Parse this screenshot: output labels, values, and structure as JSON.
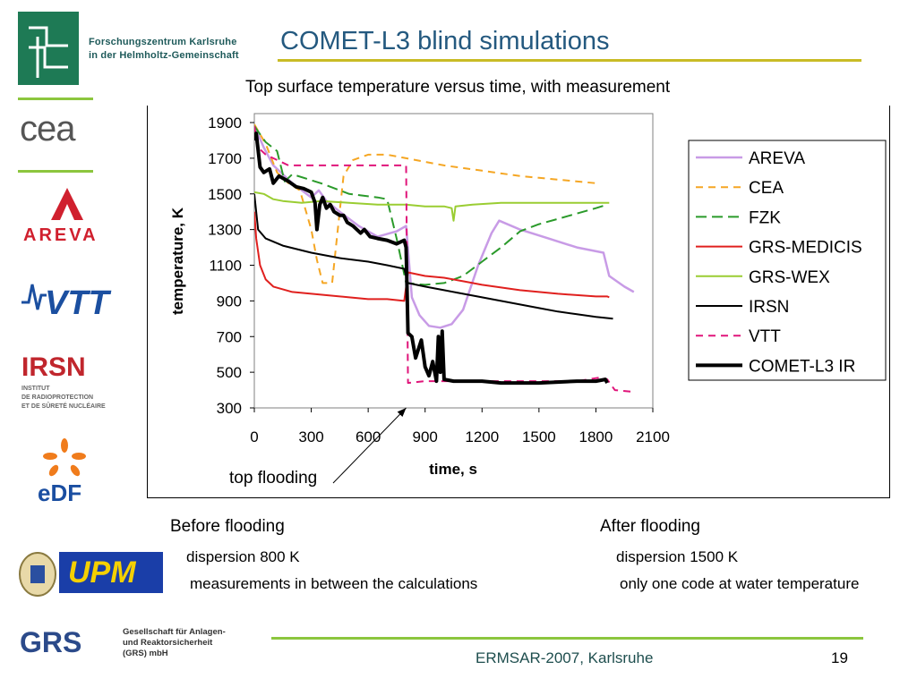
{
  "header": {
    "org_line1": "Forschungszentrum Karlsruhe",
    "org_line2": "in der Helmholtz-Gemeinschaft",
    "title": "COMET-L3 blind simulations"
  },
  "logos": {
    "cea": "cea",
    "areva": "AREVA",
    "vtt": "VTT",
    "irsn": "IRSN",
    "irsn_sub": [
      "INSTITUT",
      "DE RADIOPROTECTION",
      "ET DE SÛRETÉ NUCLÉAIRE"
    ],
    "edf": "eDF",
    "upm": "UPM",
    "grs": "GRS",
    "grs_text": [
      "Gesellschaft für Anlagen-",
      "und Reaktorsicherheit",
      "(GRS) mbH"
    ]
  },
  "colors": {
    "title": "#24597f",
    "rule_yellow": "#c9bb25",
    "rule_green": "#8cc63e",
    "fzk_green": "#1e7a55"
  },
  "chart_data": {
    "type": "line",
    "title": "Top surface temperature versus time, with measurement",
    "xlabel": "time, s",
    "ylabel": "temperature, K",
    "xlim": [
      0,
      2100
    ],
    "ylim": [
      300,
      1900
    ],
    "xticks": [
      0,
      300,
      600,
      900,
      1200,
      1500,
      1800,
      2100
    ],
    "yticks": [
      300,
      500,
      700,
      900,
      1100,
      1300,
      1500,
      1700,
      1900
    ],
    "grid": false,
    "legend_position": "right",
    "annotation": {
      "text": "top flooding",
      "x": 800,
      "y": 300
    },
    "series": [
      {
        "name": "AREVA",
        "color": "#c89be6",
        "dash": "solid",
        "width": 2.5,
        "points": [
          [
            0,
            1880
          ],
          [
            50,
            1760
          ],
          [
            100,
            1660
          ],
          [
            200,
            1560
          ],
          [
            300,
            1480
          ],
          [
            340,
            1520
          ],
          [
            380,
            1460
          ],
          [
            450,
            1400
          ],
          [
            550,
            1320
          ],
          [
            650,
            1260
          ],
          [
            750,
            1290
          ],
          [
            800,
            1320
          ],
          [
            830,
            920
          ],
          [
            870,
            820
          ],
          [
            920,
            760
          ],
          [
            980,
            750
          ],
          [
            1040,
            770
          ],
          [
            1100,
            850
          ],
          [
            1180,
            1100
          ],
          [
            1250,
            1280
          ],
          [
            1290,
            1350
          ],
          [
            1400,
            1300
          ],
          [
            1550,
            1250
          ],
          [
            1700,
            1200
          ],
          [
            1840,
            1170
          ],
          [
            1870,
            1040
          ],
          [
            1950,
            980
          ],
          [
            2000,
            950
          ]
        ]
      },
      {
        "name": "CEA",
        "color": "#f5a623",
        "dash": "8,6",
        "width": 2,
        "points": [
          [
            0,
            1890
          ],
          [
            60,
            1780
          ],
          [
            120,
            1620
          ],
          [
            180,
            1560
          ],
          [
            240,
            1520
          ],
          [
            300,
            1300
          ],
          [
            330,
            1130
          ],
          [
            360,
            1000
          ],
          [
            410,
            1000
          ],
          [
            440,
            1300
          ],
          [
            470,
            1600
          ],
          [
            520,
            1690
          ],
          [
            600,
            1720
          ],
          [
            700,
            1720
          ],
          [
            800,
            1700
          ],
          [
            1000,
            1660
          ],
          [
            1200,
            1630
          ],
          [
            1400,
            1600
          ],
          [
            1600,
            1580
          ],
          [
            1800,
            1560
          ]
        ]
      },
      {
        "name": "FZK",
        "color": "#2a9a2a",
        "dash": "12,6",
        "width": 2,
        "points": [
          [
            0,
            1880
          ],
          [
            60,
            1790
          ],
          [
            120,
            1740
          ],
          [
            160,
            1570
          ],
          [
            200,
            1610
          ],
          [
            350,
            1560
          ],
          [
            500,
            1500
          ],
          [
            650,
            1480
          ],
          [
            700,
            1470
          ],
          [
            750,
            1250
          ],
          [
            800,
            1000
          ],
          [
            900,
            990
          ],
          [
            1000,
            1000
          ],
          [
            1100,
            1040
          ],
          [
            1200,
            1120
          ],
          [
            1300,
            1200
          ],
          [
            1400,
            1290
          ],
          [
            1500,
            1330
          ],
          [
            1600,
            1360
          ],
          [
            1700,
            1390
          ],
          [
            1800,
            1420
          ],
          [
            1860,
            1440
          ]
        ]
      },
      {
        "name": "GRS-MEDICIS",
        "color": "#e0201e",
        "dash": "solid",
        "width": 2,
        "points": [
          [
            0,
            1400
          ],
          [
            10,
            1250
          ],
          [
            30,
            1100
          ],
          [
            60,
            1020
          ],
          [
            100,
            980
          ],
          [
            200,
            950
          ],
          [
            300,
            940
          ],
          [
            400,
            930
          ],
          [
            500,
            920
          ],
          [
            600,
            910
          ],
          [
            700,
            910
          ],
          [
            790,
            900
          ],
          [
            810,
            1060
          ],
          [
            900,
            1040
          ],
          [
            1000,
            1030
          ],
          [
            1100,
            1010
          ],
          [
            1200,
            990
          ],
          [
            1400,
            960
          ],
          [
            1600,
            940
          ],
          [
            1800,
            925
          ],
          [
            1860,
            925
          ],
          [
            1870,
            920
          ]
        ]
      },
      {
        "name": "GRS-WEX",
        "color": "#9acd32",
        "dash": "solid",
        "width": 2,
        "points": [
          [
            0,
            1510
          ],
          [
            50,
            1500
          ],
          [
            100,
            1470
          ],
          [
            150,
            1460
          ],
          [
            250,
            1450
          ],
          [
            350,
            1460
          ],
          [
            500,
            1450
          ],
          [
            650,
            1440
          ],
          [
            800,
            1440
          ],
          [
            900,
            1430
          ],
          [
            1000,
            1430
          ],
          [
            1040,
            1420
          ],
          [
            1050,
            1350
          ],
          [
            1060,
            1430
          ],
          [
            1150,
            1440
          ],
          [
            1300,
            1450
          ],
          [
            1500,
            1450
          ],
          [
            1700,
            1450
          ],
          [
            1870,
            1450
          ]
        ]
      },
      {
        "name": "IRSN",
        "color": "#000000",
        "dash": "solid",
        "width": 2,
        "points": [
          [
            0,
            1500
          ],
          [
            20,
            1300
          ],
          [
            60,
            1250
          ],
          [
            150,
            1210
          ],
          [
            300,
            1170
          ],
          [
            450,
            1140
          ],
          [
            600,
            1120
          ],
          [
            700,
            1100
          ],
          [
            790,
            1080
          ],
          [
            810,
            1000
          ],
          [
            900,
            980
          ],
          [
            1000,
            960
          ],
          [
            1100,
            940
          ],
          [
            1200,
            920
          ],
          [
            1300,
            900
          ],
          [
            1400,
            880
          ],
          [
            1500,
            860
          ],
          [
            1600,
            840
          ],
          [
            1700,
            825
          ],
          [
            1800,
            810
          ],
          [
            1890,
            800
          ]
        ]
      },
      {
        "name": "VTT",
        "color": "#e0157a",
        "dash": "8,6",
        "width": 2,
        "points": [
          [
            0,
            1880
          ],
          [
            20,
            1760
          ],
          [
            60,
            1720
          ],
          [
            100,
            1700
          ],
          [
            140,
            1680
          ],
          [
            180,
            1660
          ],
          [
            300,
            1660
          ],
          [
            500,
            1660
          ],
          [
            700,
            1660
          ],
          [
            790,
            1660
          ],
          [
            800,
            1660
          ],
          [
            810,
            440
          ],
          [
            900,
            450
          ],
          [
            1100,
            450
          ],
          [
            1300,
            450
          ],
          [
            1500,
            450
          ],
          [
            1700,
            450
          ],
          [
            1820,
            470
          ],
          [
            1860,
            460
          ],
          [
            1900,
            400
          ],
          [
            2000,
            390
          ]
        ]
      },
      {
        "name": "COMET-L3 IR",
        "color": "#000000",
        "dash": "solid",
        "width": 4,
        "points": [
          [
            0,
            1800
          ],
          [
            10,
            1840
          ],
          [
            30,
            1650
          ],
          [
            50,
            1620
          ],
          [
            80,
            1640
          ],
          [
            100,
            1560
          ],
          [
            130,
            1600
          ],
          [
            180,
            1570
          ],
          [
            220,
            1540
          ],
          [
            260,
            1530
          ],
          [
            300,
            1510
          ],
          [
            320,
            1450
          ],
          [
            330,
            1300
          ],
          [
            345,
            1440
          ],
          [
            360,
            1480
          ],
          [
            380,
            1420
          ],
          [
            400,
            1440
          ],
          [
            420,
            1400
          ],
          [
            450,
            1380
          ],
          [
            470,
            1380
          ],
          [
            490,
            1340
          ],
          [
            520,
            1320
          ],
          [
            560,
            1280
          ],
          [
            580,
            1300
          ],
          [
            610,
            1260
          ],
          [
            650,
            1250
          ],
          [
            700,
            1240
          ],
          [
            750,
            1220
          ],
          [
            790,
            1240
          ],
          [
            800,
            1200
          ],
          [
            810,
            720
          ],
          [
            830,
            700
          ],
          [
            850,
            580
          ],
          [
            880,
            680
          ],
          [
            900,
            530
          ],
          [
            920,
            480
          ],
          [
            940,
            560
          ],
          [
            960,
            450
          ],
          [
            970,
            700
          ],
          [
            980,
            500
          ],
          [
            990,
            730
          ],
          [
            1000,
            460
          ],
          [
            1050,
            450
          ],
          [
            1100,
            450
          ],
          [
            1200,
            450
          ],
          [
            1300,
            440
          ],
          [
            1500,
            440
          ],
          [
            1700,
            450
          ],
          [
            1800,
            450
          ],
          [
            1850,
            460
          ],
          [
            1860,
            440
          ]
        ]
      }
    ]
  },
  "notes": {
    "before_heading": "Before flooding",
    "before_line1": "dispersion 800 K",
    "before_line2": "measurements in between the calculations",
    "after_heading": "After flooding",
    "after_line1": "dispersion 1500 K",
    "after_line2": "only one code at water temperature"
  },
  "footer": {
    "event": "ERMSAR-2007, Karlsruhe",
    "page": "19"
  }
}
